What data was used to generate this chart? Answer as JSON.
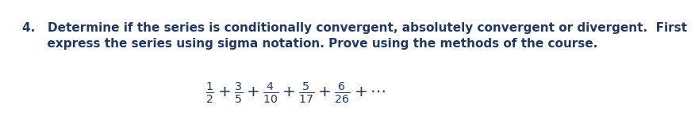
{
  "line1": "4.   Determine if the series is conditionally convergent, absolutely convergent or divergent.  First",
  "line2": "      express the series using sigma notation. Prove using the methods of the course.",
  "series_text": "$\\frac{1}{2}+\\frac{3}{5}+\\frac{4}{10}+\\frac{5}{17}+\\frac{6}{26}+\\cdots$",
  "text_color": "#1f3864",
  "background_color": "#ffffff",
  "fontsize_body": 11.0,
  "fontsize_series": 14.5
}
